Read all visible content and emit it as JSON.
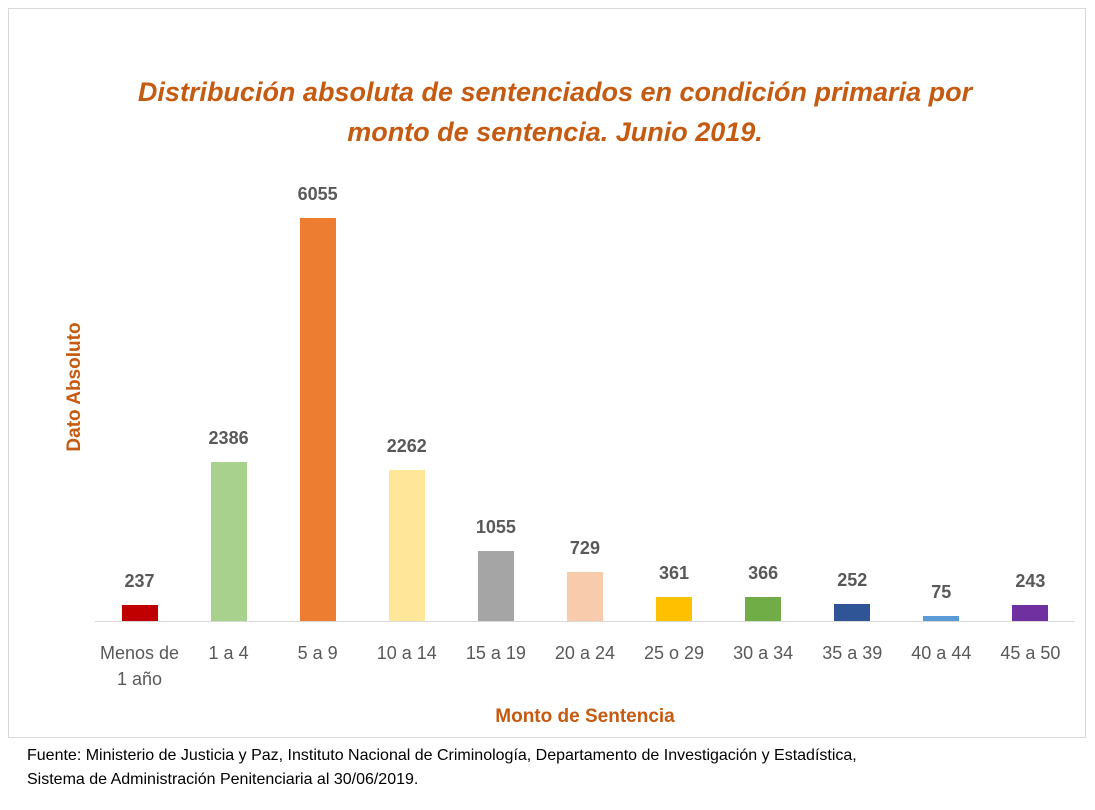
{
  "chart_data": {
    "type": "bar",
    "title": "Distribución absoluta de sentenciados en condición primaria por monto de sentencia. Junio 2019.",
    "x_label": "Monto de Sentencia",
    "y_label": "Dato Absoluto",
    "categories": [
      "Menos de 1 año",
      "1 a 4",
      "5 a 9",
      "10 a 14",
      "15 a 19",
      "20 a 24",
      "25 o 29",
      "30 a 34",
      "35 a 39",
      "40 a 44",
      "45 a 50"
    ],
    "values": [
      237,
      2386,
      6055,
      2262,
      1055,
      729,
      361,
      366,
      252,
      75,
      243
    ],
    "colors": [
      "#c00000",
      "#a9d18e",
      "#ed7d31",
      "#ffe699",
      "#a5a5a5",
      "#f8cbad",
      "#ffc000",
      "#70ad47",
      "#2f5597",
      "#5b9bd5",
      "#7030a0"
    ],
    "source": [
      "Fuente: Ministerio de Justicia y Paz, Instituto Nacional de Criminología, Departamento de Investigación y Estadística,",
      "Sistema de Administración Penitenciaria al 30/06/2019."
    ]
  }
}
